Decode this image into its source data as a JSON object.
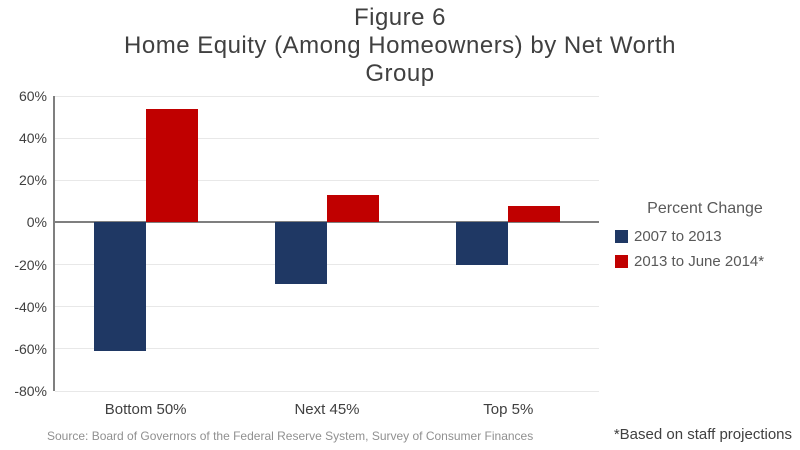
{
  "title": {
    "line1": "Figure 6",
    "line2": "Home Equity (Among Homeowners) by Net Worth",
    "line3": "Group"
  },
  "chart_data": {
    "type": "bar",
    "title": "Figure 6 Home Equity (Among Homeowners) by Net Worth Group",
    "categories": [
      "Bottom 50%",
      "Next 45%",
      "Top 5%"
    ],
    "series": [
      {
        "name": "2007 to 2013",
        "color": "#1F3864",
        "values": [
          -61,
          -29,
          -20
        ]
      },
      {
        "name": "2013 to June 2014*",
        "color": "#C00000",
        "values": [
          54,
          13,
          8
        ]
      }
    ],
    "ylim": [
      -80,
      60
    ],
    "ytick_step": 20,
    "ytick_labels": [
      "60%",
      "40%",
      "20%",
      "0%",
      "-20%",
      "-40%",
      "-60%",
      "-80%"
    ],
    "grid": true,
    "legend_position": "right",
    "legend_title": "Percent Change"
  },
  "legend": {
    "title": "Percent Change"
  },
  "source_note": "Source: Board of Governors of the Federal Reserve System, Survey of Consumer Finances",
  "footnote": "*Based on staff projections",
  "colors": {
    "series_blue": "#1F3864",
    "series_red": "#C00000",
    "axis": "#7F7F7F",
    "grid": "#E8E8E8",
    "title_text": "#404040",
    "label_text": "#404040",
    "legend_text": "#595959",
    "source_text": "#909090"
  }
}
